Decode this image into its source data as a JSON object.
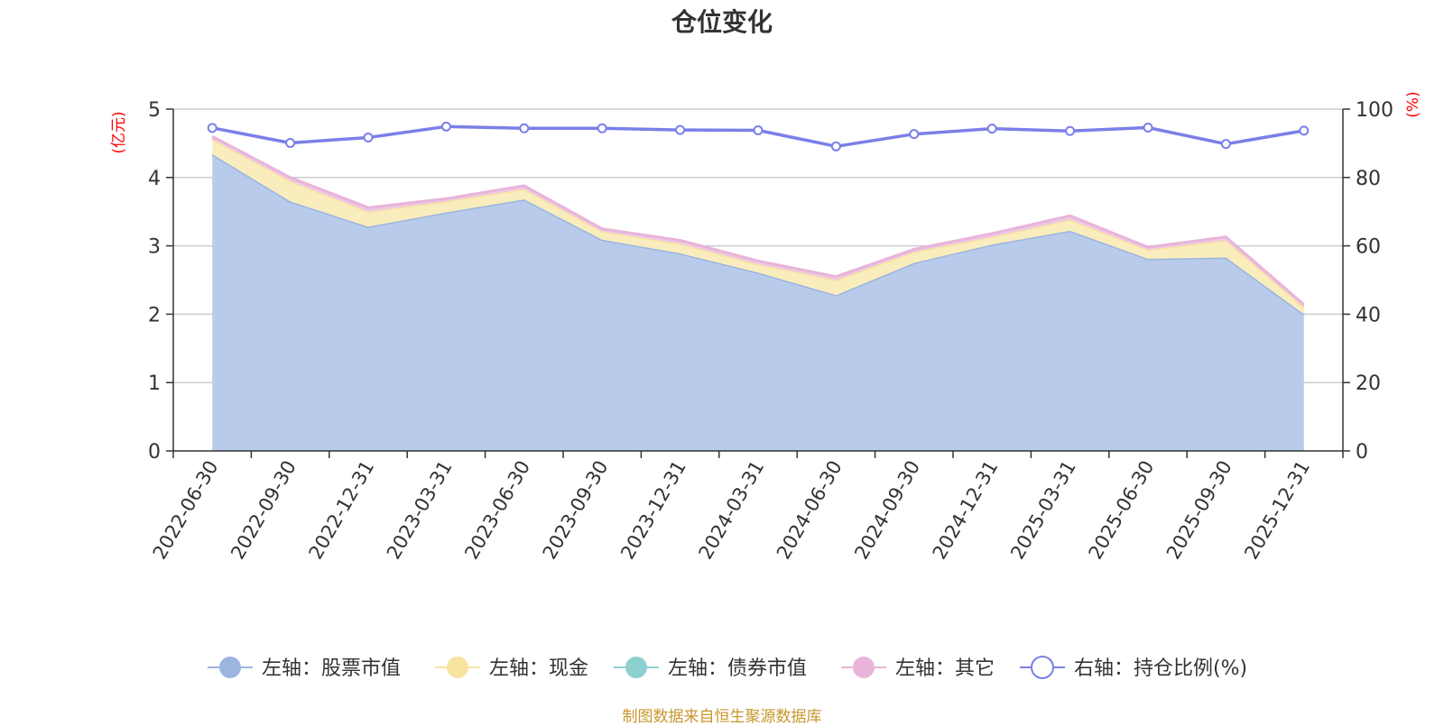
{
  "chart_data": {
    "type": "area",
    "title": "仓位变化",
    "left_axis_unit": "(亿元)",
    "right_axis_unit": "(%)",
    "ylim_left": [
      0,
      5
    ],
    "ylim_right": [
      0,
      100
    ],
    "left_ticks": [
      "0",
      "1",
      "2",
      "3",
      "4",
      "5"
    ],
    "right_ticks": [
      "0",
      "20",
      "40",
      "60",
      "80",
      "100"
    ],
    "categories": [
      "2022-06-30",
      "2022-09-30",
      "2022-12-31",
      "2023-03-31",
      "2023-06-30",
      "2023-09-30",
      "2023-12-31",
      "2024-03-31",
      "2024-06-30",
      "2024-09-30",
      "2024-12-31",
      "2025-03-31",
      "2025-06-30",
      "2025-09-30",
      "2025-12-31"
    ],
    "series": [
      {
        "name": "左轴：股票市值",
        "axis": "left",
        "color": "#9bb5df",
        "fill": "#b8cbea",
        "values": [
          4.34,
          3.65,
          3.28,
          3.49,
          3.68,
          3.09,
          2.89,
          2.61,
          2.28,
          2.75,
          3.02,
          3.22,
          2.81,
          2.83,
          2.0
        ]
      },
      {
        "name": "左轴：现金",
        "axis": "left",
        "color": "#f7e4a0",
        "fill": "#faedbd",
        "values": [
          0.22,
          0.3,
          0.22,
          0.16,
          0.15,
          0.12,
          0.14,
          0.12,
          0.22,
          0.16,
          0.11,
          0.16,
          0.13,
          0.25,
          0.1
        ]
      },
      {
        "name": "左轴：债券市值",
        "axis": "left",
        "color": "#8ed0d0",
        "fill": "#a9dcdc",
        "values": [
          0,
          0,
          0,
          0,
          0,
          0,
          0,
          0,
          0,
          0,
          0,
          0,
          0,
          0,
          0
        ]
      },
      {
        "name": "左轴：其它",
        "axis": "left",
        "color": "#e8b4da",
        "fill": "#efc8e4",
        "values": [
          0.04,
          0.05,
          0.06,
          0.04,
          0.05,
          0.04,
          0.05,
          0.05,
          0.05,
          0.04,
          0.05,
          0.06,
          0.04,
          0.05,
          0.04
        ]
      },
      {
        "name": "右轴：持仓比例(%)",
        "axis": "right",
        "color": "#7b7fe8",
        "values": [
          94.5,
          90.1,
          91.7,
          94.9,
          94.4,
          94.4,
          93.9,
          93.8,
          89.1,
          92.7,
          94.3,
          93.6,
          94.6,
          89.8,
          93.7
        ]
      }
    ]
  },
  "footer": "制图数据来自恒生聚源数据库"
}
